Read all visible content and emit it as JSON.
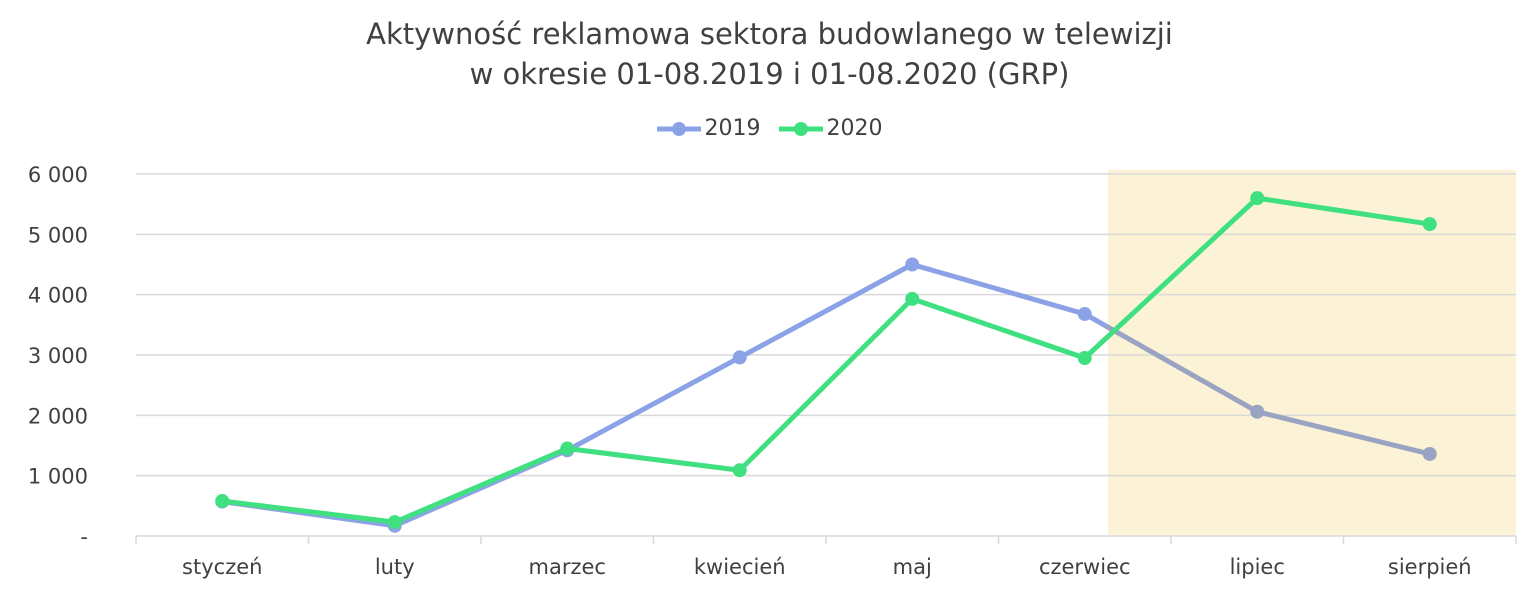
{
  "chart_data": {
    "type": "line",
    "title": [
      "Aktywność reklamowa sektora budowlanego w telewizji",
      "w okresie 01-08.2019 i 01-08.2020 (GRP)"
    ],
    "categories": [
      "styczeń",
      "luty",
      "marzec",
      "kwiecień",
      "maj",
      "czerwiec",
      "lipiec",
      "sierpień"
    ],
    "series": [
      {
        "name": "2019",
        "color": "#8BA3E6",
        "values": [
          570,
          170,
          1420,
          2960,
          4500,
          3680,
          2060,
          1360
        ]
      },
      {
        "name": "2020",
        "color": "#3FE07F",
        "values": [
          580,
          230,
          1450,
          1090,
          3930,
          2950,
          5600,
          5170
        ]
      }
    ],
    "ylim": [
      0,
      6000
    ],
    "yticks": [
      {
        "value": 0,
        "label": "-"
      },
      {
        "value": 1000,
        "label": "1 000"
      },
      {
        "value": 2000,
        "label": "2 000"
      },
      {
        "value": 3000,
        "label": "3 000"
      },
      {
        "value": 4000,
        "label": "4 000"
      },
      {
        "value": 5000,
        "label": "5 000"
      },
      {
        "value": 6000,
        "label": "6 000"
      }
    ],
    "highlight_categories": [
      "lipiec",
      "sierpień"
    ],
    "highlight_color": "#FCF2D5",
    "highlight_line_color": "#9AA3C2",
    "grid": true,
    "legend_position": "top"
  }
}
